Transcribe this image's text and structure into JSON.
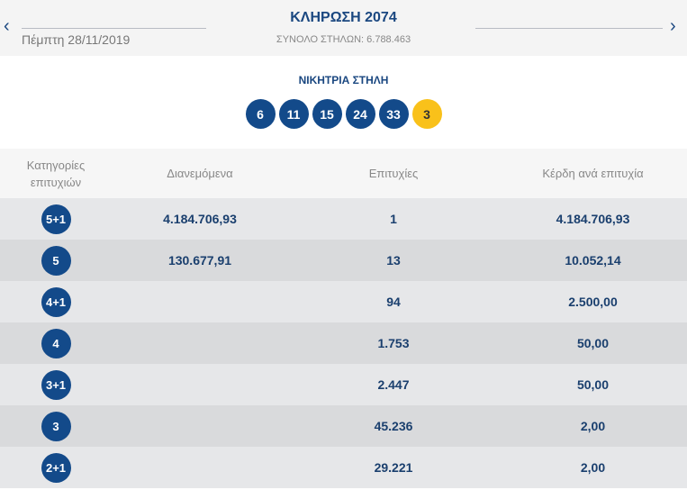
{
  "header": {
    "title": "ΚΛΗΡΩΣΗ 2074",
    "date": "Πέμπτη 28/11/2019",
    "total": "ΣΥΝΟΛΟ ΣΤΗΛΩΝ: 6.788.463",
    "prev": "‹",
    "next": "›"
  },
  "winning": {
    "label": "ΝΙΚΗΤΡΙΑ ΣΤΗΛΗ",
    "numbers": [
      "6",
      "11",
      "15",
      "24",
      "33"
    ],
    "joker": "3"
  },
  "table": {
    "headers": [
      "Κατηγορίες επιτυχιών",
      "Διανεμόμενα",
      "Επιτυχίες",
      "Κέρδη ανά επιτυχία"
    ],
    "rows": [
      {
        "cat": "5+1",
        "dist": "4.184.706,93",
        "wins": "1",
        "prize": "4.184.706,93"
      },
      {
        "cat": "5",
        "dist": "130.677,91",
        "wins": "13",
        "prize": "10.052,14"
      },
      {
        "cat": "4+1",
        "dist": "",
        "wins": "94",
        "prize": "2.500,00"
      },
      {
        "cat": "4",
        "dist": "",
        "wins": "1.753",
        "prize": "50,00"
      },
      {
        "cat": "3+1",
        "dist": "",
        "wins": "2.447",
        "prize": "50,00"
      },
      {
        "cat": "3",
        "dist": "",
        "wins": "45.236",
        "prize": "2,00"
      },
      {
        "cat": "2+1",
        "dist": "",
        "wins": "29.221",
        "prize": "2,00"
      }
    ]
  }
}
